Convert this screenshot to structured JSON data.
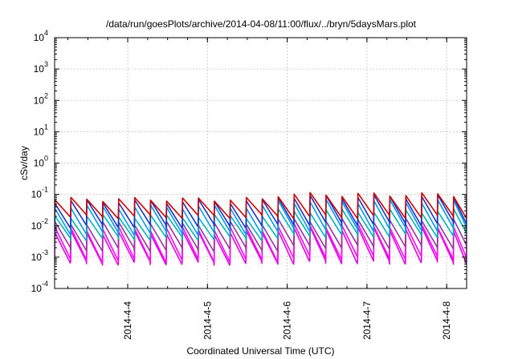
{
  "chart_data": {
    "type": "line",
    "title": "/data/run/goesPlots/archive/2014-04-08/11:00/flux/../bryn/5daysMars.plot",
    "xlabel": "Coordinated Universal Time (UTC)",
    "ylabel": "cSv/day",
    "y_scale": "log",
    "ylim": [
      0.0001,
      10000
    ],
    "xlim": [
      "2014-04-03 02:00",
      "2014-04-08 06:00"
    ],
    "grid": true,
    "legend": "none",
    "x_ticks": [
      "2014-4-4",
      "2014-4-5",
      "2014-4-6",
      "2014-4-7",
      "2014-4-8"
    ],
    "y_ticks": [
      {
        "base": "10",
        "exp": "-4"
      },
      {
        "base": "10",
        "exp": "-3"
      },
      {
        "base": "10",
        "exp": "-2"
      },
      {
        "base": "10",
        "exp": "-1"
      },
      {
        "base": "10",
        "exp": "0"
      },
      {
        "base": "10",
        "exp": "1"
      },
      {
        "base": "10",
        "exp": "2"
      },
      {
        "base": "10",
        "exp": "3"
      },
      {
        "base": "10",
        "exp": "4"
      }
    ],
    "pattern": {
      "description_of_data": "sawtooth dose-rate traces, one period per Mars rotation-like cycle",
      "period_days": 0.2,
      "phase_start": "2014-04-03 02:00"
    },
    "series": [
      {
        "color": "#cc0000",
        "peak_early": 0.07,
        "peak_late": 0.1,
        "trough_early": 0.02,
        "trough_late": 0.02
      },
      {
        "color": "#1a33cc",
        "peak_early": 0.06,
        "peak_late": 0.085,
        "trough_early": 0.01,
        "trough_late": 0.012
      },
      {
        "color": "#0099ee",
        "peak_early": 0.04,
        "peak_late": 0.06,
        "trough_early": 0.006,
        "trough_late": 0.008
      },
      {
        "color": "#00b3b3",
        "peak_early": 0.02,
        "peak_late": 0.03,
        "trough_early": 0.004,
        "trough_late": 0.005
      },
      {
        "color": "#993399",
        "peak_early": 0.012,
        "peak_late": 0.015,
        "trough_early": 0.0018,
        "trough_late": 0.0022
      },
      {
        "color": "#ff00ff",
        "peak_early": 0.008,
        "peak_late": 0.01,
        "trough_early": 0.0008,
        "trough_late": 0.001
      },
      {
        "color": "#e000e0",
        "peak_early": 0.006,
        "peak_late": 0.008,
        "trough_early": 0.00065,
        "trough_late": 0.0007
      }
    ]
  }
}
